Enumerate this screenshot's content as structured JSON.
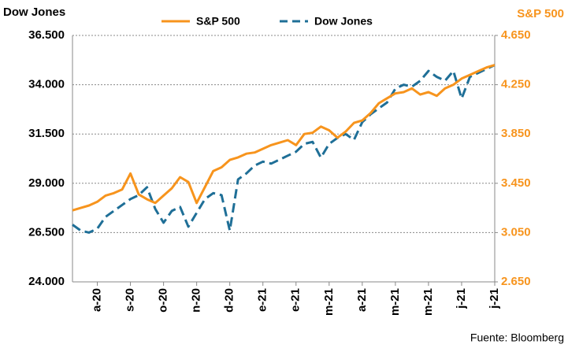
{
  "chart_data": {
    "type": "line",
    "y_label": "Dow Jones",
    "y2_label": "S&P 500",
    "source": "Fuente: Bloomberg",
    "legend": "top",
    "grid": true,
    "categories": [
      null,
      null,
      null,
      "a-20",
      null,
      null,
      null,
      "s-20",
      null,
      null,
      null,
      "o-20",
      null,
      null,
      null,
      "n-20",
      null,
      null,
      null,
      "d-20",
      null,
      null,
      null,
      "e-21",
      null,
      null,
      null,
      "e-21",
      null,
      null,
      null,
      "m-21",
      null,
      null,
      null,
      "a-21",
      null,
      null,
      null,
      "m-21",
      null,
      null,
      null,
      "m-21",
      null,
      null,
      null,
      "j-21",
      null,
      null,
      null,
      "j-21"
    ],
    "series": [
      {
        "name": "S&P 500",
        "color": "#f7941d",
        "axis": "y2",
        "dash": false,
        "values": [
          3230,
          3250,
          3270,
          3300,
          3350,
          3370,
          3400,
          3530,
          3360,
          3320,
          3290,
          3350,
          3410,
          3500,
          3460,
          3290,
          3420,
          3550,
          3580,
          3640,
          3660,
          3690,
          3700,
          3730,
          3760,
          3780,
          3800,
          3760,
          3850,
          3860,
          3910,
          3880,
          3820,
          3870,
          3940,
          3960,
          4020,
          4100,
          4140,
          4180,
          4190,
          4220,
          4170,
          4190,
          4160,
          4220,
          4250,
          4300,
          4330,
          4360,
          4390,
          4410
        ]
      },
      {
        "name": "Dow Jones",
        "color": "#1f6f97",
        "axis": "y",
        "dash": true,
        "values": [
          26900,
          26600,
          26500,
          26700,
          27300,
          27600,
          27900,
          28200,
          28400,
          28800,
          27700,
          27000,
          27600,
          27800,
          26800,
          27500,
          28200,
          28500,
          28400,
          26600,
          29200,
          29500,
          29900,
          30100,
          30000,
          30200,
          30400,
          30600,
          31000,
          31100,
          30300,
          31000,
          31300,
          31500,
          31200,
          32100,
          32500,
          32800,
          33100,
          33800,
          34000,
          33900,
          34200,
          34700,
          34400,
          34200,
          34700,
          33300,
          34400,
          34600,
          34800,
          35000
        ]
      }
    ],
    "ylim": [
      24000,
      36500
    ],
    "yticks": [
      {
        "value": 24000,
        "label": "24.000"
      },
      {
        "value": 26500,
        "label": "26.500"
      },
      {
        "value": 29000,
        "label": "29.000"
      },
      {
        "value": 31500,
        "label": "31.500"
      },
      {
        "value": 34000,
        "label": "34.000"
      },
      {
        "value": 36500,
        "label": "36.500"
      }
    ],
    "y2lim": [
      2650,
      4650
    ],
    "y2ticks": [
      {
        "value": 2650,
        "label": "2.650"
      },
      {
        "value": 3050,
        "label": "3.050"
      },
      {
        "value": 3450,
        "label": "3.450"
      },
      {
        "value": 3850,
        "label": "3.850"
      },
      {
        "value": 4250,
        "label": "4.250"
      },
      {
        "value": 4650,
        "label": "4.650"
      }
    ]
  }
}
